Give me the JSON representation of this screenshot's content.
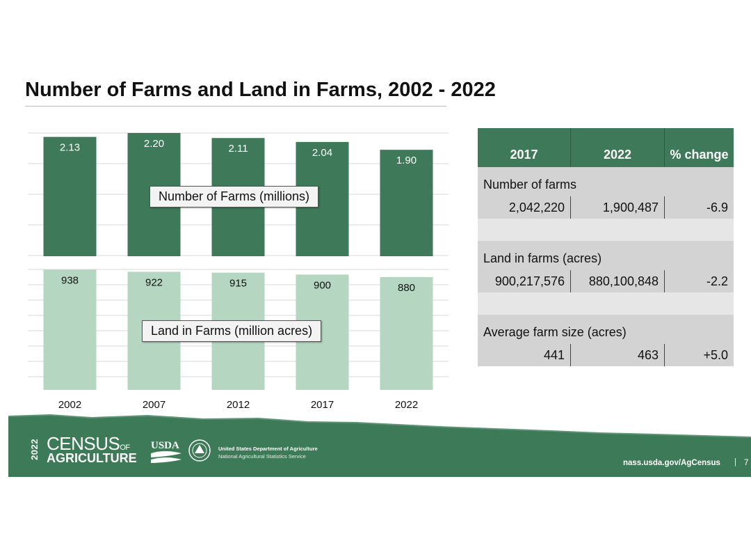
{
  "title": "Number of Farms and Land in Farms, 2002 - 2022",
  "colors": {
    "farms_bar": "#3e7a59",
    "land_bar": "#b5d7c2",
    "header": "#3e7a59",
    "footer": "#3d7a58"
  },
  "chart_data": [
    {
      "type": "bar",
      "categories": [
        "2002",
        "2007",
        "2012",
        "2017",
        "2022"
      ],
      "series": [
        {
          "name": "Number of Farms (millions)",
          "values": [
            2.13,
            2.2,
            2.11,
            2.04,
            1.9
          ],
          "labels": [
            "2.13",
            "2.20",
            "2.11",
            "2.04",
            "1.90"
          ]
        }
      ],
      "ylim": [
        0,
        2.2
      ],
      "grid": true
    },
    {
      "type": "bar",
      "categories": [
        "2002",
        "2007",
        "2012",
        "2017",
        "2022"
      ],
      "series": [
        {
          "name": "Land in Farms (million acres)",
          "values": [
            938,
            922,
            915,
            900,
            880
          ],
          "labels": [
            "938",
            "922",
            "915",
            "900",
            "880"
          ]
        }
      ],
      "ylim": [
        0,
        940
      ],
      "grid": true
    }
  ],
  "table": {
    "headers": [
      "2017",
      "2022",
      "% change"
    ],
    "sections": [
      {
        "title": "Number of farms",
        "values": [
          "2,042,220",
          "1,900,487",
          "-6.9"
        ]
      },
      {
        "title": "Land in farms (acres)",
        "values": [
          "900,217,576",
          "880,100,848",
          "-2.2"
        ]
      },
      {
        "title": "Average farm size (acres)",
        "values": [
          "441",
          "463",
          "+5.0"
        ]
      }
    ]
  },
  "footer": {
    "census_year": "2022",
    "census_word1": "CENSUS",
    "census_of": "OF",
    "census_word2": "AGRICULTURE",
    "usda": "USDA",
    "dept_line1": "United States Department of Agriculture",
    "dept_line2": "National Agricultural Statistics Service",
    "site": "nass.usda.gov/AgCensus",
    "separator": "|",
    "page": "7"
  }
}
